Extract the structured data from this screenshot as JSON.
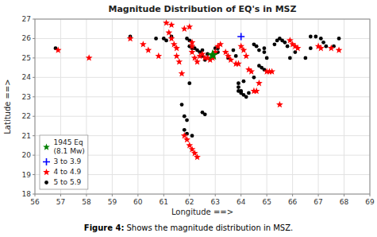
{
  "chart_data": {
    "type": "scatter",
    "title": "Magnitude Distribution of EQ's in MSZ",
    "x_label": "Longitude ==>",
    "y_label": "Latitude ==>",
    "caption": [
      "Figure 4:",
      "Shows the magnitude distribution in MSZ."
    ],
    "xlim": [
      56,
      69
    ],
    "ylim": [
      18,
      27
    ],
    "xticks": [
      56,
      57,
      58,
      59,
      60,
      61,
      62,
      63,
      64,
      65,
      66,
      67,
      68,
      69
    ],
    "yticks": [
      18,
      19,
      20,
      21,
      22,
      23,
      24,
      25,
      26,
      27
    ],
    "grid": true,
    "legend": "lower-left",
    "series": [
      {
        "name": "1945 Eq\n(8.1 Mw)",
        "color": "green",
        "marker": "star",
        "x": [
          62.9
        ],
        "values": [
          25.15
        ]
      },
      {
        "name": "3 to 3.9",
        "color": "blue",
        "marker": "plus",
        "x": [
          64.0
        ],
        "values": [
          26.1
        ]
      },
      {
        "name": "4 to 4.9",
        "color": "red",
        "marker": "star",
        "x": [
          56.9,
          58.1,
          59.7,
          60.2,
          60.4,
          60.8,
          61.1,
          61.3,
          61.2,
          61.3,
          61.4,
          61.5,
          61.5,
          61.6,
          61.7,
          61.8,
          62.0,
          62.1,
          62.1,
          62.1,
          62.2,
          62.3,
          62.4,
          62.5,
          62.6,
          62.7,
          62.8,
          62.9,
          63.0,
          63.1,
          63.2,
          63.4,
          63.5,
          63.6,
          63.8,
          63.9,
          64.0,
          64.1,
          64.2,
          64.3,
          64.4,
          64.5,
          64.6,
          64.7,
          65.0,
          65.1,
          65.2,
          65.5,
          61.8,
          61.9,
          62.0,
          62.1,
          62.2,
          62.3,
          65.9,
          66.0,
          66.1,
          66.2,
          67.0,
          67.1,
          67.5,
          67.8
        ],
        "values": [
          25.4,
          25.0,
          26.0,
          25.7,
          25.4,
          25.1,
          26.8,
          26.7,
          26.3,
          26.0,
          25.7,
          25.5,
          25.1,
          24.8,
          24.2,
          26.5,
          26.6,
          25.8,
          25.6,
          25.3,
          25.0,
          24.8,
          25.1,
          25.2,
          25.0,
          25.0,
          24.9,
          25.0,
          25.3,
          25.6,
          25.7,
          25.3,
          25.1,
          24.9,
          24.7,
          24.7,
          25.6,
          25.4,
          25.1,
          24.4,
          24.3,
          23.3,
          23.3,
          23.7,
          24.3,
          24.3,
          24.3,
          22.6,
          21.0,
          20.8,
          20.5,
          20.3,
          20.1,
          19.9,
          25.9,
          25.7,
          25.6,
          25.5,
          25.6,
          25.5,
          25.5,
          25.4
        ]
      },
      {
        "name": "5 to 5.9",
        "color": "black",
        "marker": "circle",
        "x": [
          56.8,
          59.7,
          60.7,
          61.0,
          61.1,
          61.3,
          61.9,
          62.0,
          62.0,
          62.1,
          62.2,
          62.3,
          62.4,
          62.5,
          62.5,
          62.6,
          62.7,
          62.7,
          63.0,
          63.1,
          63.1,
          63.5,
          63.7,
          63.8,
          63.9,
          63.9,
          64.0,
          64.0,
          64.1,
          64.2,
          64.3,
          63.9,
          64.1,
          64.5,
          64.7,
          64.8,
          64.9,
          64.6,
          64.5,
          64.7,
          64.9,
          64.9,
          65.0,
          65.3,
          65.4,
          65.5,
          65.6,
          65.7,
          65.8,
          65.9,
          66.1,
          66.5,
          66.7,
          66.7,
          66.9,
          67.1,
          67.2,
          67.3,
          67.6,
          67.8,
          61.7,
          61.8,
          61.9,
          61.8,
          61.9,
          62.1,
          62.5,
          62.6,
          62.0
        ],
        "values": [
          25.5,
          26.1,
          26.0,
          26.0,
          25.9,
          26.1,
          26.0,
          25.9,
          25.6,
          25.5,
          25.5,
          25.4,
          25.3,
          25.4,
          25.1,
          24.9,
          25.2,
          25.0,
          25.5,
          25.5,
          25.3,
          25.0,
          25.4,
          25.1,
          23.5,
          23.3,
          23.3,
          23.2,
          23.1,
          23.0,
          23.2,
          23.7,
          23.8,
          24.0,
          24.6,
          24.5,
          24.4,
          25.6,
          25.7,
          25.4,
          25.3,
          25.5,
          25.0,
          25.7,
          25.9,
          26.0,
          25.9,
          25.8,
          25.6,
          25.0,
          25.3,
          25.0,
          25.5,
          26.1,
          26.1,
          26.0,
          25.8,
          25.6,
          25.6,
          26.0,
          22.6,
          22.0,
          21.8,
          21.3,
          21.1,
          21.0,
          22.2,
          22.1,
          23.7
        ]
      }
    ]
  }
}
